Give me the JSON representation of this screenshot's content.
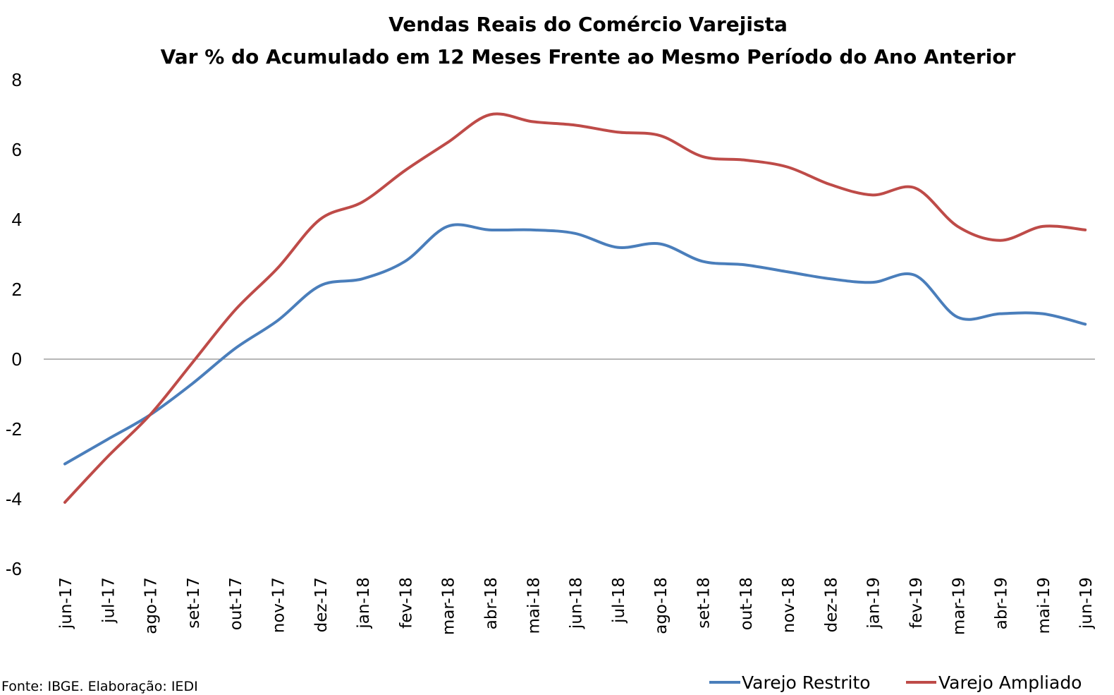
{
  "chart_data": {
    "type": "line",
    "title": "Vendas Reais do Comércio Varejista",
    "subtitle": "Var % do Acumulado em 12 Meses Frente ao Mesmo Período do Ano Anterior",
    "xlabel": "",
    "ylabel": "",
    "ylim": [
      -6,
      8
    ],
    "yticks": [
      "8",
      "6",
      "4",
      "2",
      "0",
      "-2",
      "-4",
      "-6"
    ],
    "ytick_values": [
      8,
      6,
      4,
      2,
      0,
      -2,
      -4,
      -6
    ],
    "grid": false,
    "zero_line": true,
    "legend_position": "bottom-right",
    "categories": [
      "jun-17",
      "jul-17",
      "ago-17",
      "set-17",
      "out-17",
      "nov-17",
      "dez-17",
      "jan-18",
      "fev-18",
      "mar-18",
      "abr-18",
      "mai-18",
      "jun-18",
      "jul-18",
      "ago-18",
      "set-18",
      "out-18",
      "nov-18",
      "dez-18",
      "jan-19",
      "fev-19",
      "mar-19",
      "abr-19",
      "mai-19",
      "jun-19"
    ],
    "series": [
      {
        "name": "Varejo Restrito",
        "color": "#4a7ebb",
        "values": [
          -3.0,
          -2.3,
          -1.6,
          -0.7,
          0.3,
          1.1,
          2.1,
          2.3,
          2.8,
          3.8,
          3.7,
          3.7,
          3.6,
          3.2,
          3.3,
          2.8,
          2.7,
          2.5,
          2.3,
          2.2,
          2.4,
          1.2,
          1.3,
          1.3,
          1.0
        ]
      },
      {
        "name": "Varejo Ampliado",
        "color": "#be4b48",
        "values": [
          -4.1,
          -2.8,
          -1.6,
          -0.1,
          1.4,
          2.6,
          4.0,
          4.5,
          5.4,
          6.2,
          7.0,
          6.8,
          6.7,
          6.5,
          6.4,
          5.8,
          5.7,
          5.5,
          5.0,
          4.7,
          4.9,
          3.8,
          3.4,
          3.8,
          3.7
        ]
      }
    ],
    "source": "Fonte: IBGE. Elaboração: IEDI"
  }
}
